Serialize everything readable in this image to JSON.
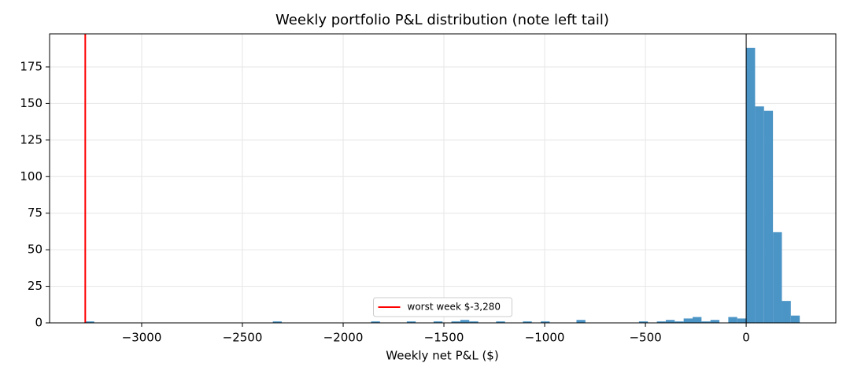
{
  "chart_data": {
    "type": "histogram",
    "title": "Weekly portfolio P&L distribution (note left tail)",
    "xlabel": "Weekly net P&L ($)",
    "bins": [
      -3280,
      -3235.7,
      -3191.4,
      -3147,
      -3102.7,
      -3058.4,
      -3014.1,
      -2969.7,
      -2925.4,
      -2881.1,
      -2836.8,
      -2792.4,
      -2748.1,
      -2703.8,
      -2659.5,
      -2615.1,
      -2570.8,
      -2526.5,
      -2482.2,
      -2437.8,
      -2393.5,
      -2349.2,
      -2304.9,
      -2260.5,
      -2216.2,
      -2171.9,
      -2127.6,
      -2083.2,
      -2038.9,
      -1994.6,
      -1950.3,
      -1905.9,
      -1861.6,
      -1817.3,
      -1773,
      -1728.6,
      -1684.3,
      -1640,
      -1595.7,
      -1551.3,
      -1507,
      -1462.7,
      -1418.4,
      -1374,
      -1329.7,
      -1285.4,
      -1241.1,
      -1196.7,
      -1152.4,
      -1108.1,
      -1063.8,
      -1019.4,
      -975.1,
      -930.8,
      -886.5,
      -842.1,
      -797.8,
      -753.5,
      -709.2,
      -664.8,
      -620.5,
      -576.2,
      -531.9,
      -487.5,
      -443.2,
      -398.9,
      -354.6,
      -310.2,
      -265.9,
      -221.6,
      -177.3,
      -132.9,
      -88.6,
      -44.3,
      0,
      44.3,
      88.6,
      133,
      177.3,
      221.6,
      266
    ],
    "counts": [
      1,
      0,
      0,
      0,
      0,
      0,
      0,
      0,
      0,
      0,
      0,
      0,
      0,
      0,
      0,
      0,
      0,
      0,
      0,
      0,
      0,
      1,
      0,
      0,
      0,
      0,
      0,
      0,
      0,
      0,
      0,
      0,
      1,
      0,
      0,
      0,
      1,
      0,
      0,
      1,
      0,
      1,
      2,
      1,
      0,
      0,
      1,
      0,
      0,
      1,
      0,
      1,
      0,
      0,
      0,
      2,
      0,
      0,
      0,
      0,
      0,
      0,
      1,
      0,
      1,
      2,
      1,
      3,
      4,
      1,
      2,
      0,
      4,
      3,
      188,
      148,
      145,
      62,
      15,
      5
    ],
    "color": "#4b94c6",
    "vlines": [
      {
        "value": -3280,
        "color": "#ff0000",
        "label": "worst week $-3,280"
      },
      {
        "value": 0,
        "color": "#000000"
      }
    ],
    "xlim": [
      -3457,
      445
    ],
    "ylim": [
      0,
      197.6
    ],
    "xticks": [
      {
        "value": -3000,
        "label": "−3000"
      },
      {
        "value": -2500,
        "label": "−2500"
      },
      {
        "value": -2000,
        "label": "−2000"
      },
      {
        "value": -1500,
        "label": "−1500"
      },
      {
        "value": -1000,
        "label": "−1000"
      },
      {
        "value": -500,
        "label": "−500"
      },
      0
    ],
    "yticks": [
      0,
      25,
      50,
      75,
      100,
      125,
      150,
      175
    ],
    "grid": true,
    "legend": "lower center"
  }
}
